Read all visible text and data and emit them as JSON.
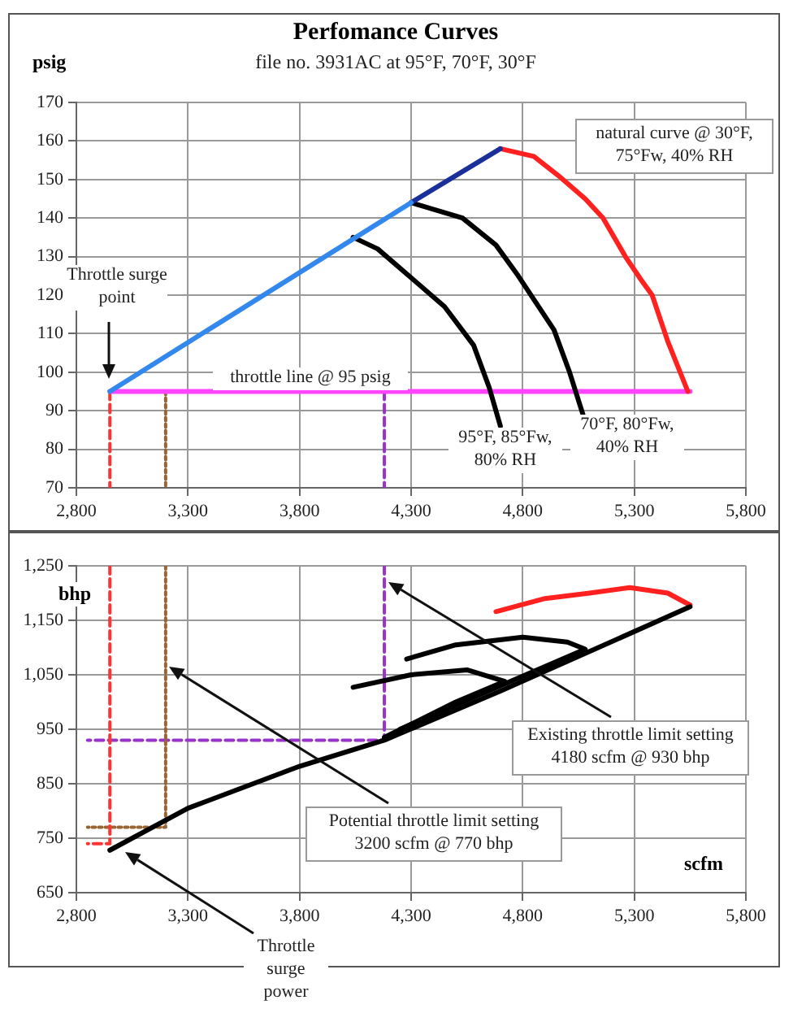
{
  "chart_data": [
    {
      "type": "line",
      "title": "Perfomance Curves",
      "subtitle": "file no. 3931AC  at 95°F, 70°F, 30°F",
      "ylabel": "psig",
      "xlim": [
        2800,
        5800
      ],
      "xticks": [
        {
          "value": 2800,
          "label": "2,800"
        },
        {
          "value": 3300,
          "label": "3,300"
        },
        {
          "value": 3800,
          "label": "3,800"
        },
        {
          "value": 4300,
          "label": "4,300"
        },
        {
          "value": 4800,
          "label": "4,800"
        },
        {
          "value": 5300,
          "label": "5,300"
        },
        {
          "value": 5800,
          "label": "5,800"
        }
      ],
      "ylim": [
        70,
        170
      ],
      "yticks": [
        70,
        80,
        90,
        100,
        110,
        120,
        130,
        140,
        150,
        160,
        170
      ],
      "grid": true,
      "marker": "none",
      "annotations": [
        "natural curve @ 30°F, 75°Fw, 40% RH",
        "Throttle surge point",
        "throttle line @ 95 psig",
        "95°F, 85°Fw, 80% RH",
        "70°F, 80°Fw, 40% RH"
      ],
      "series": [
        {
          "color": "#3388ee",
          "x": [
            2950,
            4300
          ],
          "values": [
            95,
            144
          ]
        },
        {
          "color": "#1a2f99",
          "x": [
            4300,
            4700
          ],
          "values": [
            144,
            158
          ]
        },
        {
          "color": "#000000",
          "x": [
            4040,
            4150,
            4290,
            4450,
            4580,
            4650,
            4700
          ],
          "values": [
            135,
            132,
            125,
            117,
            107,
            96,
            86
          ]
        },
        {
          "color": "#000000",
          "x": [
            4300,
            4530,
            4680,
            4780,
            4940,
            5010,
            5070
          ],
          "values": [
            144,
            140,
            133,
            125,
            111,
            100,
            89
          ]
        },
        {
          "color": "#ff2020",
          "x": [
            4700,
            4850,
            4960,
            5080,
            5160,
            5260,
            5330,
            5380,
            5450,
            5540
          ],
          "values": [
            158,
            156,
            151,
            145,
            140,
            130,
            124,
            120,
            108,
            95
          ]
        },
        {
          "color": "#ff44ff",
          "x": [
            2950,
            5550
          ],
          "values": [
            95,
            95
          ]
        },
        {
          "color": "#ff3333",
          "line_style": "dashed",
          "x": [
            2950,
            2950
          ],
          "values": [
            95,
            70
          ]
        },
        {
          "color": "#996633",
          "line_style": "dotted",
          "x": [
            3200,
            3200
          ],
          "values": [
            95,
            70
          ]
        },
        {
          "color": "#9933cc",
          "line_style": "dashed",
          "x": [
            4180,
            4180
          ],
          "values": [
            95,
            70
          ]
        }
      ]
    },
    {
      "type": "line",
      "ylabel": "bhp",
      "xlabel": "scfm",
      "xlim": [
        2800,
        5800
      ],
      "xticks": [
        {
          "value": 2800,
          "label": "2,800"
        },
        {
          "value": 3300,
          "label": "3,300"
        },
        {
          "value": 3800,
          "label": "3,800"
        },
        {
          "value": 4300,
          "label": "4,300"
        },
        {
          "value": 4800,
          "label": "4,800"
        },
        {
          "value": 5300,
          "label": "5,300"
        },
        {
          "value": 5800,
          "label": "5,800"
        }
      ],
      "ylim": [
        650,
        1250
      ],
      "yticks": [
        650,
        750,
        850,
        950,
        {
          "value": 1050,
          "label": "1,050"
        },
        {
          "value": 1150,
          "label": "1,150"
        },
        {
          "value": 1250,
          "label": "1,250"
        }
      ],
      "grid": true,
      "marker": "none",
      "annotations": [
        "Existing throttle limit setting 4180 scfm @ 930 bhp",
        "Potential throttle limit setting 3200 scfm @ 770 bhp",
        "Throttle surge power"
      ],
      "series": [
        {
          "color": "#000000",
          "x": [
            2950,
            3300,
            3800,
            4180,
            4700,
            5550
          ],
          "values": [
            728,
            805,
            882,
            930,
            1020,
            1175
          ]
        },
        {
          "color": "#000000",
          "x": [
            4180,
            4500,
            4720,
            4550,
            4300,
            4040
          ],
          "values": [
            935,
            1000,
            1038,
            1059,
            1050,
            1027
          ]
        },
        {
          "color": "#000000",
          "x": [
            4250,
            4700,
            5080,
            5000,
            4800,
            4500,
            4280
          ],
          "values": [
            950,
            1030,
            1097,
            1110,
            1119,
            1105,
            1079
          ]
        },
        {
          "color": "#ff2020",
          "x": [
            4680,
            4900,
            5100,
            5280,
            5450,
            5550
          ],
          "values": [
            1166,
            1190,
            1200,
            1210,
            1200,
            1178
          ]
        },
        {
          "color": "#ff3333",
          "line_style": "dashed",
          "x": [
            2950,
            2950,
            2850
          ],
          "values": [
            1250,
            740,
            740
          ]
        },
        {
          "color": "#996633",
          "line_style": "dotted",
          "x": [
            3200,
            3200,
            2850
          ],
          "values": [
            1250,
            770,
            770
          ]
        },
        {
          "color": "#9933cc",
          "line_style": "dashed",
          "x": [
            4180,
            4180,
            2850
          ],
          "values": [
            1250,
            930,
            930
          ]
        }
      ]
    }
  ]
}
